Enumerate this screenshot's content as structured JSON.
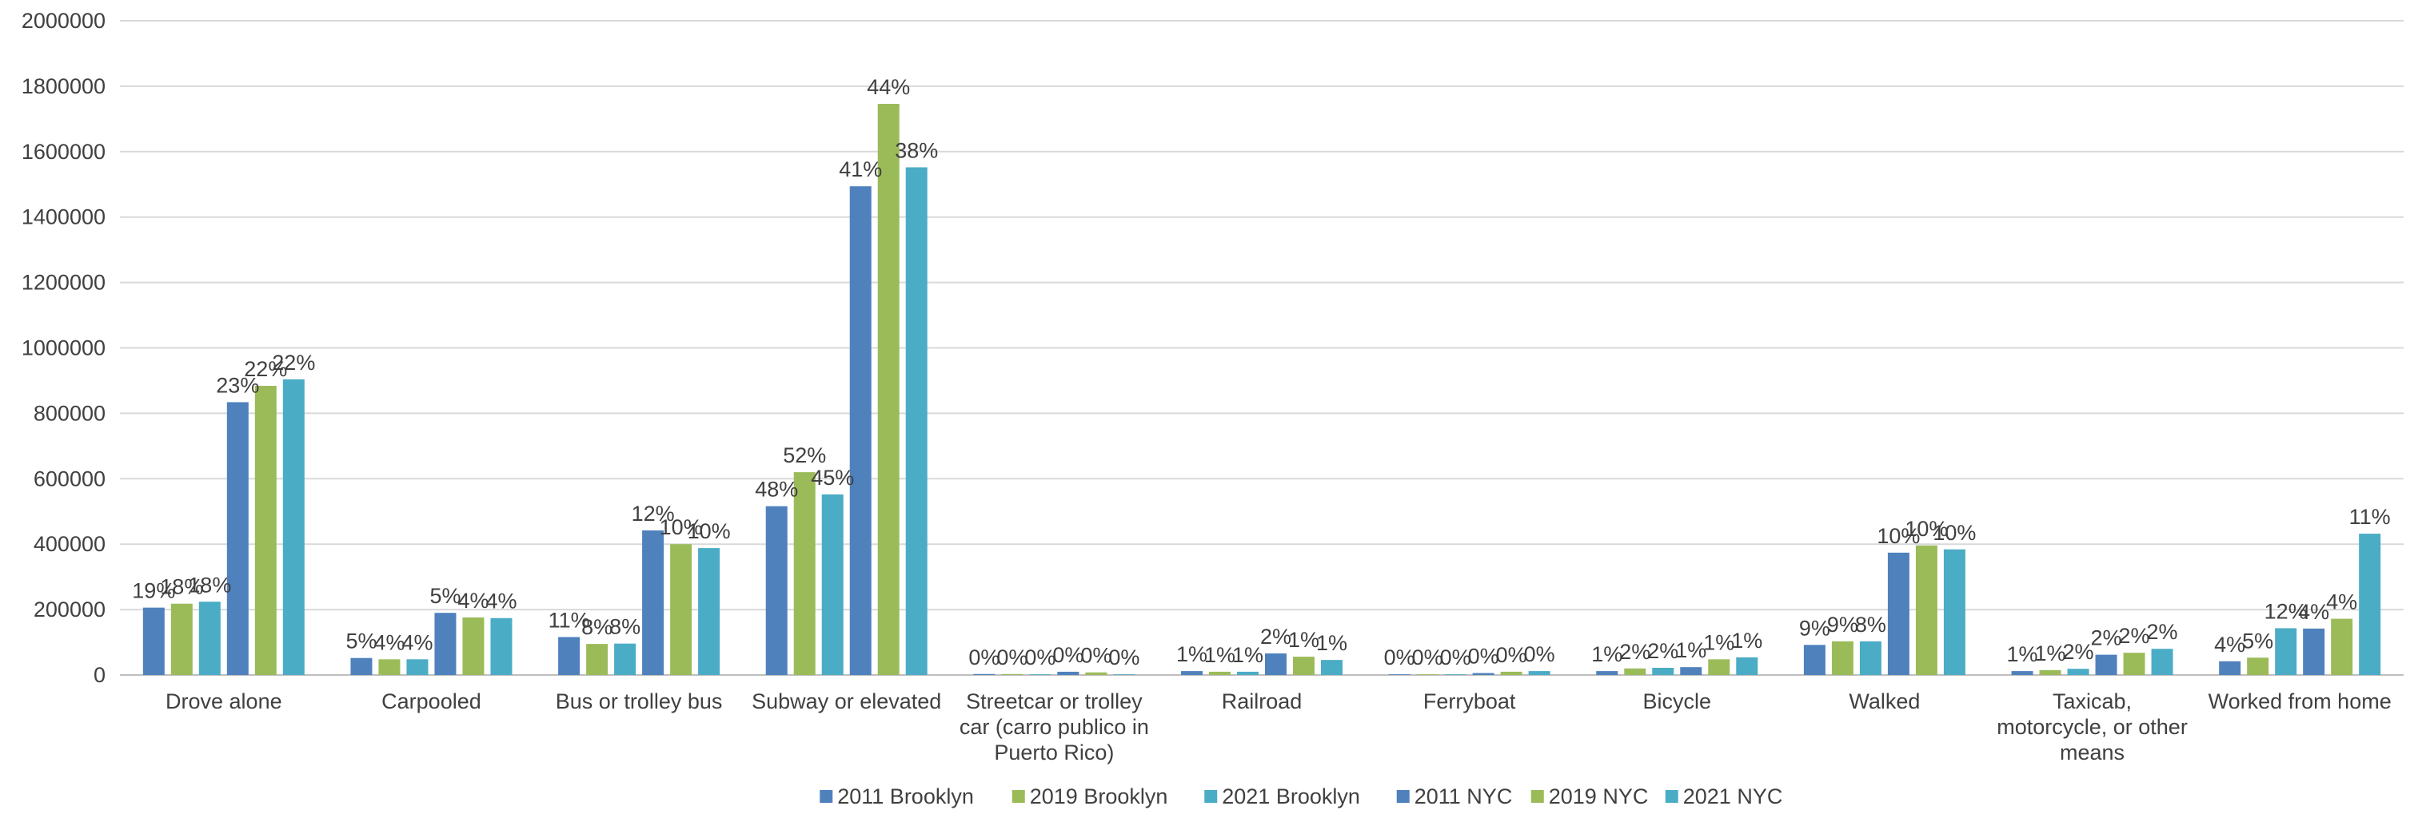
{
  "chart_data": {
    "type": "bar",
    "title": "",
    "xlabel": "",
    "ylabel": "",
    "ylim": [
      0,
      2000000
    ],
    "yticks": [
      0,
      200000,
      400000,
      600000,
      800000,
      1000000,
      1200000,
      1400000,
      1600000,
      1800000,
      2000000
    ],
    "grid": true,
    "legend_position": "bottom",
    "categories": [
      [
        "Drove alone"
      ],
      [
        "Carpooled"
      ],
      [
        "Bus or trolley bus"
      ],
      [
        "Subway or elevated"
      ],
      [
        "Streetcar or trolley",
        "car (carro publico in",
        "Puerto Rico)"
      ],
      [
        "Railroad"
      ],
      [
        "Ferryboat"
      ],
      [
        "Bicycle"
      ],
      [
        "Walked"
      ],
      [
        "Taxicab,",
        "motorcycle, or other",
        "means"
      ],
      [
        "Worked from home"
      ]
    ],
    "series": [
      {
        "name": "2011 Brooklyn",
        "color": "#4f81bd",
        "values": [
          206000,
          52000,
          116000,
          516000,
          3000,
          12000,
          2000,
          12000,
          92000,
          12000,
          42000
        ],
        "labels": [
          "19%",
          "5%",
          "11%",
          "48%",
          "0%",
          "1%",
          "0%",
          "1%",
          "9%",
          "1%",
          "4%"
        ]
      },
      {
        "name": "2019 Brooklyn",
        "color": "#9bbb59",
        "values": [
          218000,
          48000,
          95000,
          620000,
          3000,
          10000,
          2000,
          20000,
          103000,
          15000,
          53000
        ],
        "labels": [
          "18%",
          "4%",
          "8%",
          "52%",
          "0%",
          "1%",
          "0%",
          "2%",
          "9%",
          "1%",
          "5%"
        ]
      },
      {
        "name": "2021 Brooklyn",
        "color": "#4bacc6",
        "values": [
          224000,
          48000,
          96000,
          552000,
          2000,
          10000,
          2000,
          22000,
          103000,
          19000,
          143000
        ],
        "labels": [
          "18%",
          "4%",
          "8%",
          "45%",
          "0%",
          "1%",
          "0%",
          "2%",
          "8%",
          "2%",
          "12%"
        ]
      },
      {
        "name": "2011 NYC",
        "color": "#4f81bd",
        "values": [
          834000,
          190000,
          442000,
          1494000,
          10000,
          66000,
          6000,
          24000,
          374000,
          62000,
          142000
        ],
        "labels": [
          "23%",
          "5%",
          "12%",
          "41%",
          "0%",
          "2%",
          "0%",
          "1%",
          "10%",
          "2%",
          "4%"
        ]
      },
      {
        "name": "2019 NYC",
        "color": "#9bbb59",
        "values": [
          884000,
          176000,
          400000,
          1746000,
          8000,
          56000,
          10000,
          48000,
          396000,
          68000,
          172000
        ],
        "labels": [
          "22%",
          "4%",
          "10%",
          "44%",
          "0%",
          "1%",
          "0%",
          "1%",
          "10%",
          "2%",
          "4%"
        ]
      },
      {
        "name": "2021 NYC",
        "color": "#4bacc6",
        "values": [
          904000,
          174000,
          388000,
          1552000,
          2000,
          46000,
          12000,
          54000,
          384000,
          80000,
          432000
        ],
        "labels": [
          "22%",
          "4%",
          "10%",
          "38%",
          "0%",
          "1%",
          "0%",
          "1%",
          "10%",
          "2%",
          "11%"
        ]
      }
    ]
  }
}
